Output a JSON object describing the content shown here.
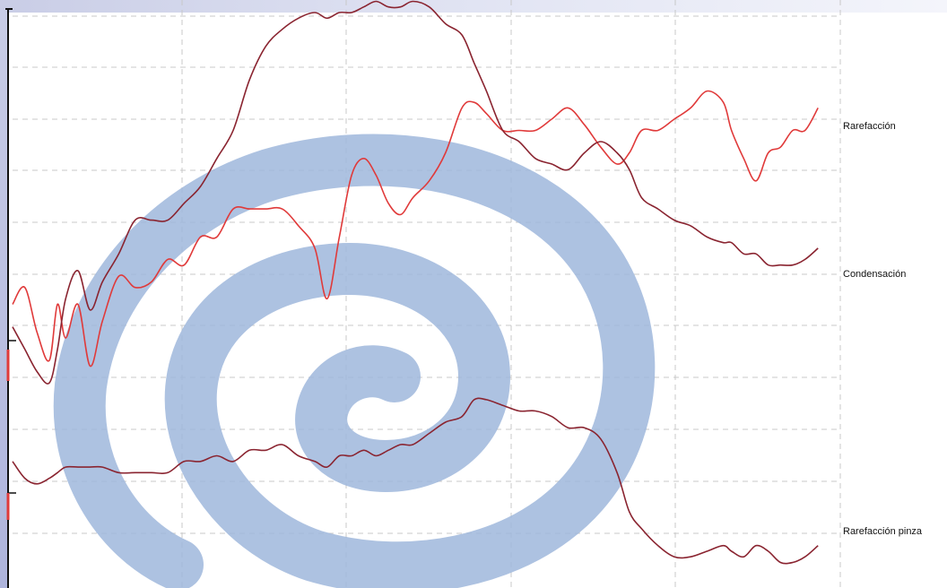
{
  "chart_data": {
    "type": "line",
    "xlim": [
      0,
      100
    ],
    "ylim": [
      0,
      100
    ],
    "grid": true,
    "colors": {
      "bright_trace": "#e03a3a",
      "dark_trace": "#8a2430",
      "watermark": "#9fb7dc",
      "grid": "#c8c8c8"
    },
    "watermark_icon": "spiral-logo-icon",
    "series": [
      {
        "name": "Rarefacción",
        "color_key": "bright_trace",
        "x": [
          0,
          1.5,
          3,
          4.5,
          5.5,
          6.5,
          8,
          9.5,
          11,
          13,
          15,
          17,
          19,
          21,
          23,
          25,
          27,
          29,
          31,
          33,
          35,
          37,
          38.5,
          40,
          41.5,
          43,
          44.5,
          46,
          47.5,
          49,
          51,
          53,
          55,
          56.5,
          58,
          60,
          62,
          64,
          66,
          68,
          70,
          72,
          74,
          75.5,
          77,
          79,
          81,
          83,
          85,
          87,
          88,
          89.5,
          91,
          92.5,
          94,
          95.5,
          97,
          98.6
        ],
        "y": [
          48,
          51,
          43,
          38,
          48,
          42,
          48,
          37,
          45,
          53,
          51,
          52,
          56,
          55,
          60,
          60,
          65,
          65,
          65,
          65,
          62,
          58,
          49,
          60,
          71,
          74,
          71,
          66,
          64,
          67,
          70,
          75,
          83,
          84,
          82,
          79,
          79,
          79,
          81,
          83,
          80,
          76,
          73,
          75,
          79,
          79,
          81,
          83,
          86,
          84,
          79,
          74,
          70,
          75,
          76,
          79,
          79,
          83
        ]
      },
      {
        "name": "Condensación",
        "color_key": "dark_trace",
        "x": [
          0,
          1.5,
          3,
          4.5,
          5.5,
          6.5,
          8,
          9.5,
          11,
          13,
          15,
          17,
          19,
          21,
          23,
          25,
          27,
          29,
          31,
          33,
          35,
          37,
          38.5,
          40,
          41.5,
          43,
          44.5,
          46,
          47.5,
          49,
          51,
          53,
          55,
          56.5,
          58,
          60,
          62,
          64,
          66,
          68,
          70,
          72,
          74,
          75.5,
          77,
          79,
          81,
          83,
          85,
          87,
          88,
          89.5,
          91,
          92.5,
          94,
          95.5,
          97,
          98.6
        ],
        "y": [
          44,
          40,
          36,
          34,
          40,
          49,
          54,
          47,
          52,
          57,
          63,
          63,
          63,
          66,
          69,
          74,
          79,
          88,
          94,
          97,
          99,
          100,
          99,
          100,
          100,
          101,
          102,
          101,
          101,
          102,
          101,
          98,
          96,
          91,
          86,
          79,
          77,
          74,
          73,
          72,
          75,
          77,
          75,
          72,
          67,
          65,
          63,
          62,
          60,
          59,
          59,
          57,
          57,
          55,
          55,
          55,
          56,
          58
        ]
      },
      {
        "name": "Rarefacción pinza",
        "color_key": "dark_trace",
        "x": [
          0,
          1.5,
          3,
          4.5,
          5.5,
          6.5,
          8,
          9.5,
          11,
          13,
          15,
          17,
          19,
          21,
          23,
          25,
          27,
          29,
          31,
          33,
          35,
          37,
          38.5,
          40,
          41.5,
          43,
          44.5,
          46,
          47.5,
          49,
          51,
          53,
          55,
          56.5,
          58,
          60,
          62,
          64,
          66,
          68,
          70,
          72,
          74,
          75.5,
          77,
          79,
          81,
          83,
          85,
          87,
          88,
          89.5,
          91,
          92.5,
          94,
          95.5,
          97,
          98.6
        ],
        "y": [
          20,
          17,
          16,
          17,
          18,
          19,
          19,
          19,
          19,
          18,
          18,
          18,
          18,
          20,
          20,
          21,
          20,
          22,
          22,
          23,
          21,
          20,
          19,
          21,
          21,
          22,
          21,
          22,
          23,
          23,
          25,
          27,
          28,
          31,
          31,
          30,
          29,
          29,
          28,
          26,
          26,
          24,
          18,
          11,
          8,
          5,
          3,
          3,
          4,
          5,
          4,
          3,
          5,
          4,
          2,
          2,
          3,
          5
        ]
      }
    ],
    "labels": {
      "rarefaccion": "Rarefacción",
      "condensacion": "Condensación",
      "rarefaccion_pinza": "Rarefacción pinza"
    }
  }
}
